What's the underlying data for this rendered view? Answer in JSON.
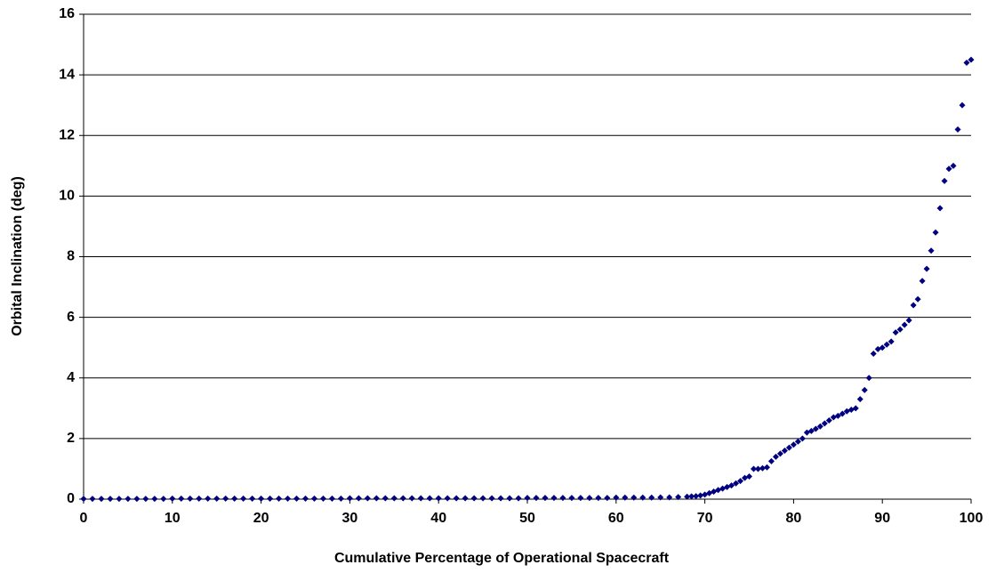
{
  "chart_data": {
    "type": "scatter",
    "xlabel": "Cumulative Percentage of Operational Spacecraft",
    "ylabel": "Orbital Inclination  (deg)",
    "x": [
      0,
      1,
      2,
      3,
      4,
      5,
      6,
      7,
      8,
      9,
      10,
      11,
      12,
      13,
      14,
      15,
      16,
      17,
      18,
      19,
      20,
      21,
      22,
      23,
      24,
      25,
      26,
      27,
      28,
      29,
      30,
      31,
      32,
      33,
      34,
      35,
      36,
      37,
      38,
      39,
      40,
      41,
      42,
      43,
      44,
      45,
      46,
      47,
      48,
      49,
      50,
      51,
      52,
      53,
      54,
      55,
      56,
      57,
      58,
      59,
      60,
      61,
      62,
      63,
      64,
      65,
      66,
      67,
      68,
      68.5,
      69,
      69.5,
      70,
      70.5,
      71,
      71.5,
      72,
      72.5,
      73,
      73.5,
      74,
      74.5,
      75,
      75.5,
      76,
      76.5,
      77,
      77.5,
      78,
      78.5,
      79,
      79.5,
      80,
      80.5,
      81,
      81.5,
      82,
      82.5,
      83,
      83.5,
      84,
      84.5,
      85,
      85.5,
      86,
      86.5,
      87,
      87.5,
      88,
      88.5,
      89,
      89.5,
      90,
      90.5,
      91,
      91.5,
      92,
      92.5,
      93,
      93.5,
      94,
      94.5,
      95,
      95.5,
      96,
      96.5,
      97,
      97.5,
      98,
      98.5,
      99,
      99.5,
      100
    ],
    "values": [
      0.01,
      0.01,
      0.01,
      0.01,
      0.01,
      0.01,
      0.01,
      0.01,
      0.01,
      0.01,
      0.02,
      0.02,
      0.02,
      0.02,
      0.02,
      0.02,
      0.02,
      0.02,
      0.02,
      0.02,
      0.02,
      0.02,
      0.02,
      0.02,
      0.02,
      0.02,
      0.02,
      0.02,
      0.02,
      0.02,
      0.03,
      0.03,
      0.03,
      0.03,
      0.03,
      0.03,
      0.03,
      0.03,
      0.03,
      0.03,
      0.03,
      0.03,
      0.03,
      0.03,
      0.03,
      0.03,
      0.03,
      0.03,
      0.03,
      0.03,
      0.04,
      0.04,
      0.04,
      0.04,
      0.04,
      0.04,
      0.04,
      0.04,
      0.04,
      0.04,
      0.05,
      0.05,
      0.05,
      0.05,
      0.05,
      0.06,
      0.06,
      0.07,
      0.08,
      0.09,
      0.1,
      0.12,
      0.15,
      0.2,
      0.25,
      0.3,
      0.35,
      0.4,
      0.45,
      0.52,
      0.6,
      0.7,
      0.75,
      1.0,
      1.0,
      1.02,
      1.05,
      1.25,
      1.4,
      1.5,
      1.6,
      1.7,
      1.8,
      1.9,
      2.0,
      2.2,
      2.25,
      2.32,
      2.4,
      2.5,
      2.6,
      2.7,
      2.75,
      2.82,
      2.9,
      2.95,
      3.0,
      3.3,
      3.6,
      4.0,
      4.8,
      4.95,
      5.0,
      5.1,
      5.2,
      5.5,
      5.6,
      5.75,
      5.9,
      6.4,
      6.6,
      7.2,
      7.6,
      8.2,
      8.8,
      9.6,
      10.5,
      10.9,
      11.0,
      12.2,
      13.0,
      14.4,
      14.5
    ],
    "color": "#000080",
    "xlim": [
      0,
      100
    ],
    "xticks": [
      0,
      10,
      20,
      30,
      40,
      50,
      60,
      70,
      80,
      90,
      100
    ],
    "ylim": [
      0,
      16
    ],
    "yticks": [
      0,
      2,
      4,
      6,
      8,
      10,
      12,
      14,
      16
    ],
    "grid": true
  }
}
